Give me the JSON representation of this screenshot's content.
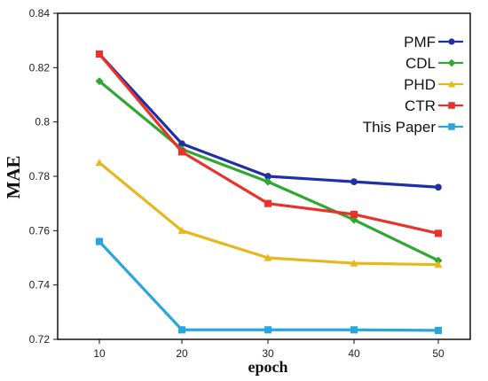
{
  "chart_data": {
    "type": "line",
    "title": "",
    "xlabel": "epoch",
    "ylabel": "MAE",
    "x": [
      10,
      20,
      30,
      40,
      50
    ],
    "x_ticks": [
      "10",
      "20",
      "30",
      "40",
      "50"
    ],
    "y_ticks": [
      "0.72",
      "0.74",
      "0.76",
      "0.78",
      "0.8",
      "0.82",
      "0.84"
    ],
    "ylim": [
      0.72,
      0.84
    ],
    "grid": false,
    "legend_position": "top-right",
    "series": [
      {
        "name": "PMF",
        "color": "#1f2fa8",
        "marker": "circle",
        "values": [
          0.825,
          0.792,
          0.78,
          0.778,
          0.776
        ]
      },
      {
        "name": "CDL",
        "color": "#2ea82e",
        "marker": "diamond",
        "values": [
          0.815,
          0.79,
          0.778,
          0.764,
          0.749
        ]
      },
      {
        "name": "PHD",
        "color": "#e6b81e",
        "marker": "triangle",
        "values": [
          0.785,
          0.76,
          0.75,
          0.748,
          0.7475
        ]
      },
      {
        "name": "CTR",
        "color": "#e8322a",
        "marker": "square",
        "values": [
          0.825,
          0.789,
          0.77,
          0.766,
          0.759
        ]
      },
      {
        "name": "This Paper",
        "color": "#2aa6de",
        "marker": "square",
        "values": [
          0.756,
          0.7235,
          0.7235,
          0.7235,
          0.7233
        ]
      }
    ]
  }
}
